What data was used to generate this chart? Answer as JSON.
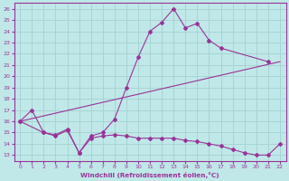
{
  "xlabel": "Windchill (Refroidissement éolien,°C)",
  "xlim": [
    -0.5,
    22.5
  ],
  "ylim": [
    12.5,
    26.5
  ],
  "yticks": [
    13,
    14,
    15,
    16,
    17,
    18,
    19,
    20,
    21,
    22,
    23,
    24,
    25,
    26
  ],
  "xticks": [
    0,
    1,
    2,
    3,
    4,
    5,
    6,
    7,
    8,
    9,
    10,
    11,
    12,
    13,
    14,
    15,
    16,
    17,
    18,
    19,
    20,
    21,
    22
  ],
  "bg_color": "#c0e8e8",
  "grid_color": "#a8d4d4",
  "line_color": "#993399",
  "line1_x": [
    0,
    1,
    2,
    3,
    4,
    5,
    6,
    7,
    8,
    9,
    10,
    11,
    12,
    13,
    14,
    15,
    16,
    17,
    21
  ],
  "line1_y": [
    16,
    17,
    15,
    14.8,
    15.3,
    13.2,
    14.7,
    15.0,
    16.2,
    19.0,
    21.7,
    24.0,
    24.8,
    26.0,
    24.3,
    24.7,
    23.2,
    22.5,
    21.3
  ],
  "line2_x": [
    0,
    2,
    3,
    4,
    5,
    6,
    7,
    8,
    9,
    10,
    11,
    12,
    13,
    14,
    15,
    16,
    17,
    18,
    19,
    20,
    21,
    22
  ],
  "line2_y": [
    16,
    15.0,
    14.7,
    15.2,
    13.2,
    14.5,
    14.7,
    14.8,
    14.7,
    14.5,
    14.5,
    14.5,
    14.5,
    14.3,
    14.2,
    14.0,
    13.8,
    13.5,
    13.2,
    13.0,
    13.0,
    14.0
  ],
  "line3_x": [
    0,
    22
  ],
  "line3_y": [
    16,
    21.3
  ]
}
